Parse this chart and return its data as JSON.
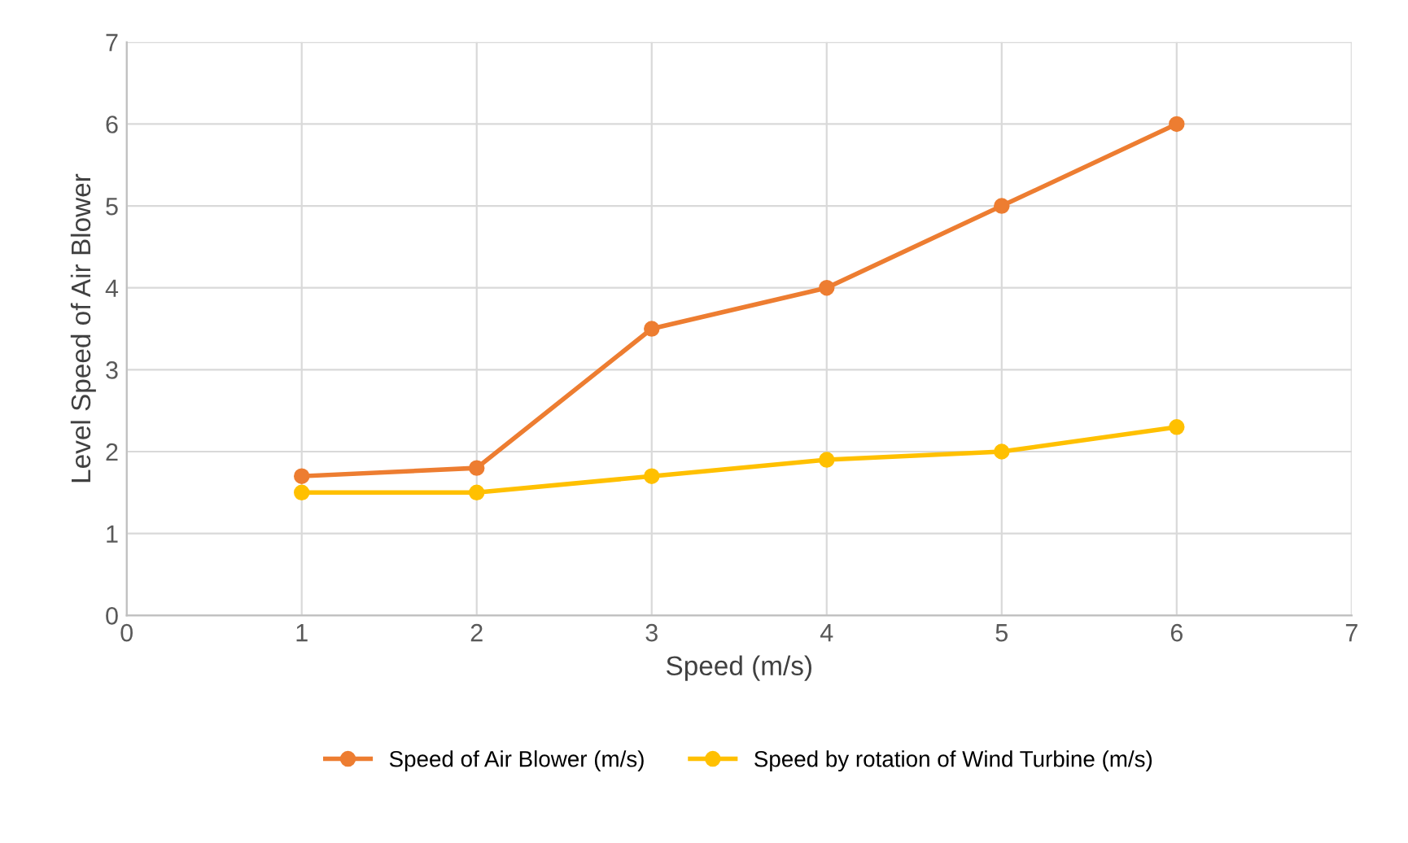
{
  "chart_data": {
    "type": "line",
    "xlabel": "Speed (m/s)",
    "ylabel": "Level Speed of Air Blower",
    "x": [
      1,
      2,
      3,
      4,
      5,
      6
    ],
    "series": [
      {
        "name": "Speed of Air Blower (m/s)",
        "color": "#ed7d31",
        "values": [
          1.7,
          1.8,
          3.5,
          4.0,
          5.0,
          6.0
        ]
      },
      {
        "name": "Speed by rotation of Wind Turbine (m/s)",
        "color": "#ffc000",
        "values": [
          1.5,
          1.5,
          1.7,
          1.9,
          2.0,
          2.3
        ]
      }
    ],
    "xlim": [
      0,
      7
    ],
    "ylim": [
      0,
      7
    ],
    "xticks": [
      0,
      1,
      2,
      3,
      4,
      5,
      6,
      7
    ],
    "yticks": [
      0,
      1,
      2,
      3,
      4,
      5,
      6,
      7
    ],
    "grid": true,
    "legend": "bottom",
    "marker": "circle",
    "line_style": "solid"
  }
}
